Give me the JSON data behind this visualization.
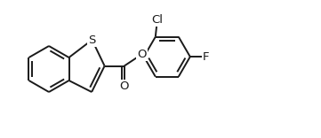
{
  "background_color": "#ffffff",
  "line_color": "#1a1a1a",
  "line_width": 1.4,
  "font_size": 9.5,
  "figsize": [
    3.61,
    1.56
  ],
  "dpi": 100,
  "xlim": [
    0,
    3.61
  ],
  "ylim": [
    0,
    1.56
  ]
}
